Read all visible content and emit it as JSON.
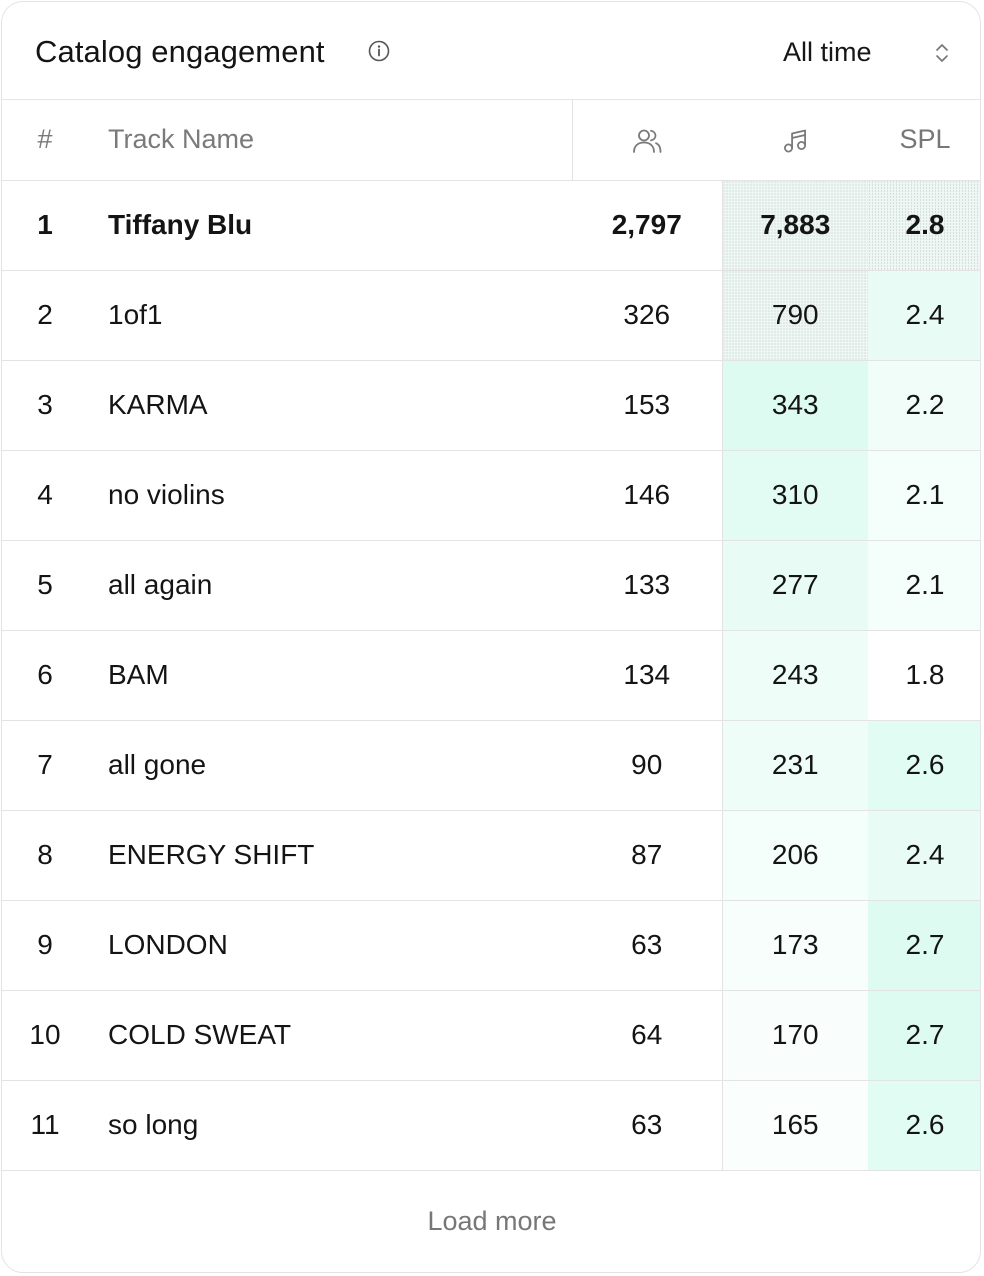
{
  "header": {
    "title": "Catalog engagement",
    "info_icon": "info-circle-icon",
    "range": {
      "selected": "All time",
      "icon": "chevron-up-down-icon"
    }
  },
  "table": {
    "columns": {
      "rank": "#",
      "name": "Track Name",
      "listeners_icon": "users-icon",
      "streams_icon": "music-note-icon",
      "spl": "SPL"
    },
    "rows": [
      {
        "rank": "1",
        "name": "Tiffany Blu",
        "listeners": "2,797",
        "streams": "7,883",
        "spl": "2.8"
      },
      {
        "rank": "2",
        "name": "1of1",
        "listeners": "326",
        "streams": "790",
        "spl": "2.4"
      },
      {
        "rank": "3",
        "name": "KARMA",
        "listeners": "153",
        "streams": "343",
        "spl": "2.2"
      },
      {
        "rank": "4",
        "name": "no violins",
        "listeners": "146",
        "streams": "310",
        "spl": "2.1"
      },
      {
        "rank": "5",
        "name": "all again",
        "listeners": "133",
        "streams": "277",
        "spl": "2.1"
      },
      {
        "rank": "6",
        "name": "BAM",
        "listeners": "134",
        "streams": "243",
        "spl": "1.8"
      },
      {
        "rank": "7",
        "name": "all gone",
        "listeners": "90",
        "streams": "231",
        "spl": "2.6"
      },
      {
        "rank": "8",
        "name": "ENERGY SHIFT",
        "listeners": "87",
        "streams": "206",
        "spl": "2.4"
      },
      {
        "rank": "9",
        "name": "LONDON",
        "listeners": "63",
        "streams": "173",
        "spl": "2.7"
      },
      {
        "rank": "10",
        "name": "COLD SWEAT",
        "listeners": "64",
        "streams": "170",
        "spl": "2.7"
      },
      {
        "rank": "11",
        "name": "so long",
        "listeners": "63",
        "streams": "165",
        "spl": "2.6"
      }
    ]
  },
  "footer": {
    "load_more": "Load more"
  },
  "colors": {
    "heat_accent": "#2ee8a4",
    "border": "#e3e3e3",
    "muted_text": "#777777",
    "text": "#141414"
  }
}
